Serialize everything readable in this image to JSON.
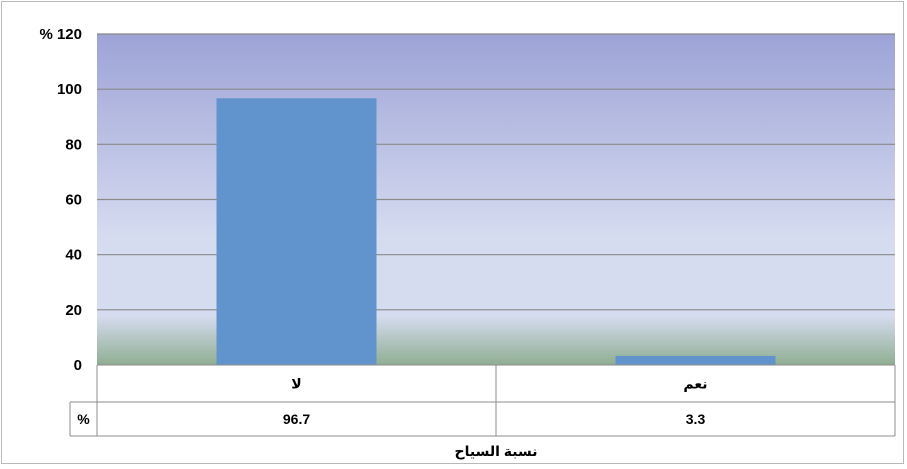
{
  "chart_data": {
    "type": "bar",
    "categories": [
      "لا",
      "نعم"
    ],
    "values": [
      96.7,
      3.3
    ],
    "title": "",
    "xlabel": "نسبة السياح",
    "ylabel": "",
    "ylim": [
      0,
      120
    ],
    "yticks": [
      0,
      20,
      40,
      60,
      80,
      100,
      120
    ],
    "top_tick_suffix": "%",
    "grid": true,
    "legend": "none",
    "data_table": {
      "row_label": "%",
      "values_text": [
        "96.7",
        "3.3"
      ]
    },
    "colors": {
      "bar": "#6194cc",
      "plot_top": "#9da3d6",
      "plot_mid": "#d6dcf0",
      "plot_bottom": "#8fae92",
      "gridline": "#8a8a8a",
      "table_border": "#8c8c8c"
    }
  }
}
